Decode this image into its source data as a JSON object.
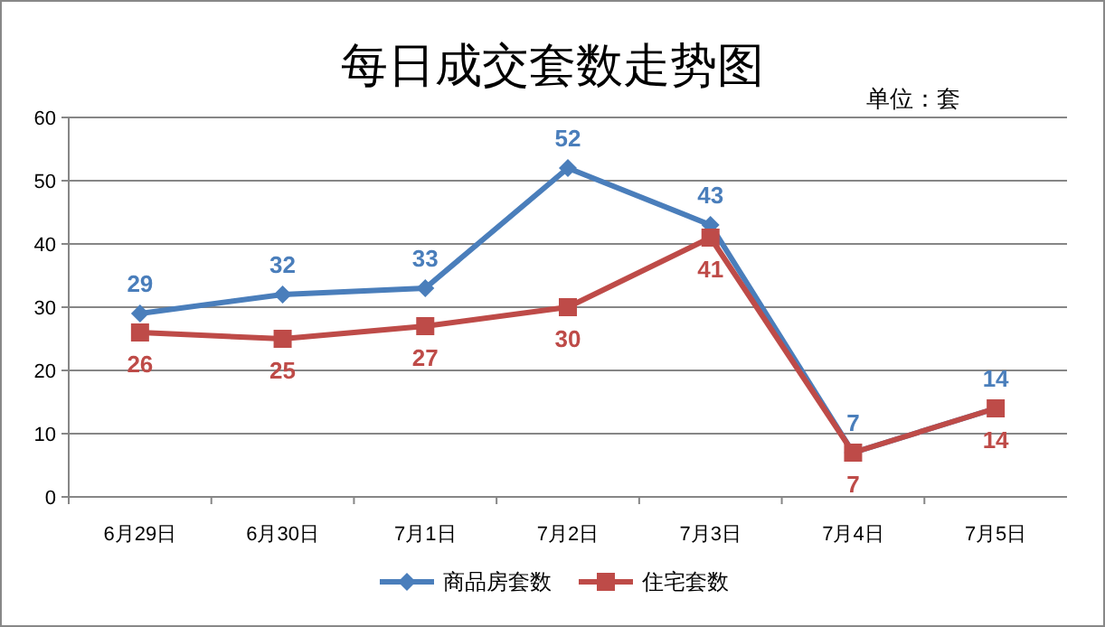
{
  "chart_data": {
    "type": "line",
    "title": "每日成交套数走势图",
    "annotations": [
      "单位：套"
    ],
    "categories": [
      "6月29日",
      "6月30日",
      "7月1日",
      "7月2日",
      "7月3日",
      "7月4日",
      "7月5日"
    ],
    "series": [
      {
        "name": "商品房套数",
        "color": "#4a7ebb",
        "marker": "diamond",
        "values": [
          29,
          32,
          33,
          52,
          43,
          7,
          14
        ]
      },
      {
        "name": "住宅套数",
        "color": "#be4b48",
        "marker": "square",
        "values": [
          26,
          25,
          27,
          30,
          41,
          7,
          14
        ]
      }
    ],
    "ylim": [
      0,
      60
    ],
    "yticks": [
      0,
      10,
      20,
      30,
      40,
      50,
      60
    ],
    "grid": "y",
    "legend": "bottom",
    "data_labels": true,
    "line_style": "solid"
  }
}
